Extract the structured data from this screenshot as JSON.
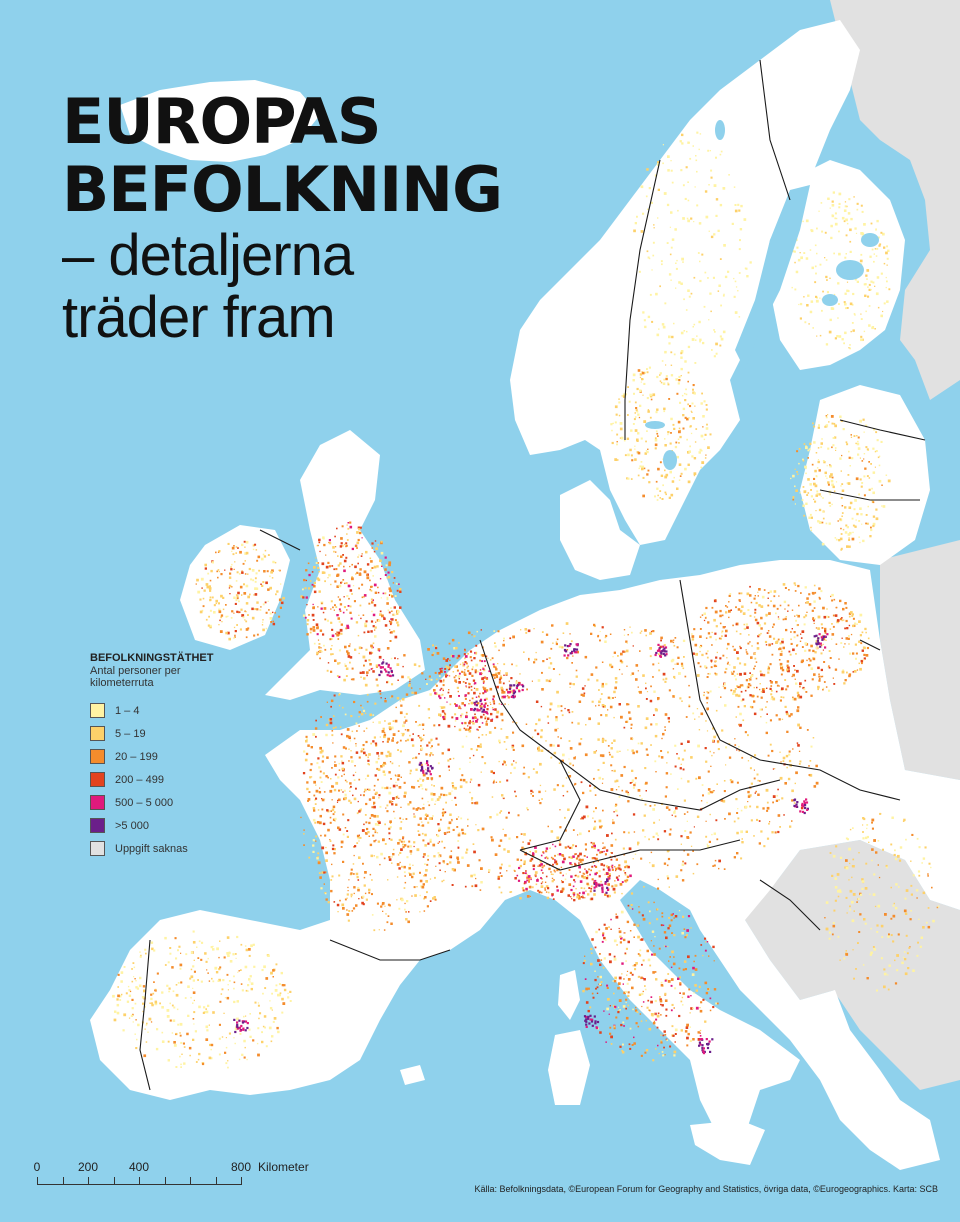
{
  "title": {
    "line1": "EUROPAS",
    "line2": "BEFOLKNING",
    "line3": "– detaljerna",
    "line4": "träder fram"
  },
  "legend": {
    "title": "BEFOLKNINGSTÄTHET",
    "subtitle": "Antal personer per kilometerruta",
    "items": [
      {
        "label": "1 – 4",
        "color": "#fff3a3"
      },
      {
        "label": "5 – 19",
        "color": "#fdd16a"
      },
      {
        "label": "20 – 199",
        "color": "#f48c2c"
      },
      {
        "label": "200 – 499",
        "color": "#e2431e"
      },
      {
        "label": "500 – 5 000",
        "color": "#e01a7c"
      },
      {
        "label": ">5 000",
        "color": "#6b1f8a"
      },
      {
        "label": "Uppgift saknas",
        "color": "#e1e1e1"
      }
    ]
  },
  "scale_bar": {
    "ticks": [
      "0",
      "200",
      "400",
      "800"
    ],
    "unit": "Kilometer"
  },
  "source": "Källa: Befolkningsdata, ©European Forum for Geography and Statistics, övriga data, ©Eurogeographics. Karta: SCB",
  "colors": {
    "sea": "#8fd1ec",
    "land_base": "#ffffff",
    "no_data": "#e1e1e1",
    "border": "#1a1a1a"
  }
}
